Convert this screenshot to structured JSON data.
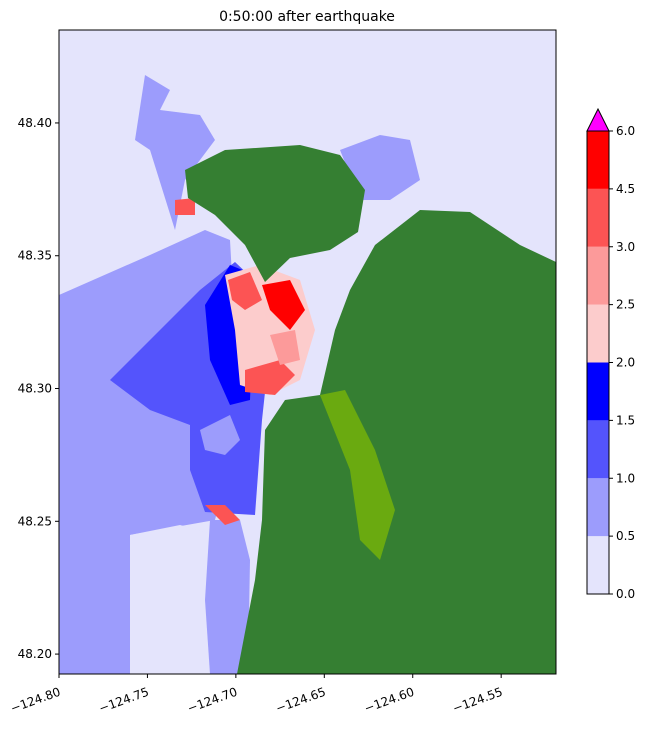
{
  "chart_data": {
    "type": "map",
    "title": "0:50:00 after earthquake",
    "xlim": [
      -124.8,
      -124.519
    ],
    "ylim": [
      48.1925,
      48.435
    ],
    "xticks": [
      {
        "value": -124.8,
        "label": "−124.80"
      },
      {
        "value": -124.75,
        "label": "−124.75"
      },
      {
        "value": -124.7,
        "label": "−124.70"
      },
      {
        "value": -124.65,
        "label": "−124.65"
      },
      {
        "value": -124.6,
        "label": "−124.60"
      },
      {
        "value": -124.55,
        "label": "−124.55"
      }
    ],
    "yticks": [
      {
        "value": 48.2,
        "label": "48.20"
      },
      {
        "value": 48.25,
        "label": "48.25"
      },
      {
        "value": 48.3,
        "label": "48.30"
      },
      {
        "value": 48.35,
        "label": "48.35"
      },
      {
        "value": 48.4,
        "label": "48.40"
      }
    ],
    "colorbar": {
      "levels": [
        {
          "value": 0,
          "label": "0.0"
        },
        {
          "value": 0.5,
          "label": "0.5"
        },
        {
          "value": 1,
          "label": "1.0"
        },
        {
          "value": 1.5,
          "label": "1.5"
        },
        {
          "value": 2,
          "label": "2.0"
        },
        {
          "value": 2.5,
          "label": "2.5"
        },
        {
          "value": 3,
          "label": "3.0"
        },
        {
          "value": 4.5,
          "label": "4.5"
        },
        {
          "value": 6,
          "label": "6.0"
        }
      ],
      "colors": [
        "#e4e4fc",
        "#9c9cfc",
        "#5454fc",
        "#0000ff",
        "#fccccc",
        "#fc9a9a",
        "#fc5454",
        "#ff0000"
      ],
      "extend_color": "#ff00ff"
    }
  }
}
